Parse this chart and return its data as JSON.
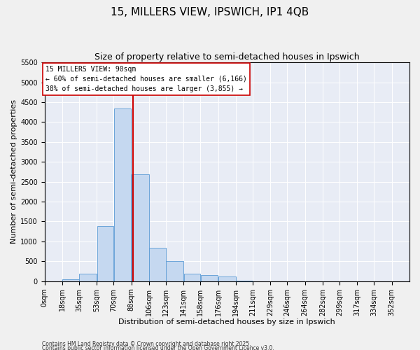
{
  "title": "15, MILLERS VIEW, IPSWICH, IP1 4QB",
  "subtitle": "Size of property relative to semi-detached houses in Ipswich",
  "xlabel": "Distribution of semi-detached houses by size in Ipswich",
  "ylabel": "Number of semi-detached properties",
  "property_size": 90,
  "annotation_line1": "15 MILLERS VIEW: 90sqm",
  "annotation_line2": "← 60% of semi-detached houses are smaller (6,166)",
  "annotation_line3": "38% of semi-detached houses are larger (3,855) →",
  "footer1": "Contains HM Land Registry data © Crown copyright and database right 2025.",
  "footer2": "Contains public sector information licensed under the Open Government Licence v3.0.",
  "bar_color": "#c5d8f0",
  "bar_edge_color": "#5b9bd5",
  "vline_color": "#cc0000",
  "background_color": "#e8ecf5",
  "fig_background": "#f0f0f0",
  "categories": [
    "0sqm",
    "18sqm",
    "35sqm",
    "53sqm",
    "70sqm",
    "88sqm",
    "106sqm",
    "123sqm",
    "141sqm",
    "158sqm",
    "176sqm",
    "194sqm",
    "211sqm",
    "229sqm",
    "246sqm",
    "264sqm",
    "282sqm",
    "299sqm",
    "317sqm",
    "334sqm",
    "352sqm"
  ],
  "bar_values": [
    3,
    55,
    195,
    1380,
    4350,
    2680,
    840,
    500,
    195,
    150,
    110,
    5,
    0,
    0,
    0,
    0,
    0,
    0,
    0,
    0,
    0
  ],
  "bin_edges": [
    0,
    18,
    35,
    53,
    70,
    88,
    106,
    123,
    141,
    158,
    176,
    194,
    211,
    229,
    246,
    264,
    282,
    299,
    317,
    334,
    352,
    370
  ],
  "ylim": [
    0,
    5500
  ],
  "yticks": [
    0,
    500,
    1000,
    1500,
    2000,
    2500,
    3000,
    3500,
    4000,
    4500,
    5000,
    5500
  ],
  "title_fontsize": 11,
  "subtitle_fontsize": 9,
  "axis_label_fontsize": 8,
  "ylabel_fontsize": 8,
  "tick_fontsize": 7,
  "annotation_fontsize": 7,
  "footer_fontsize": 5.5
}
